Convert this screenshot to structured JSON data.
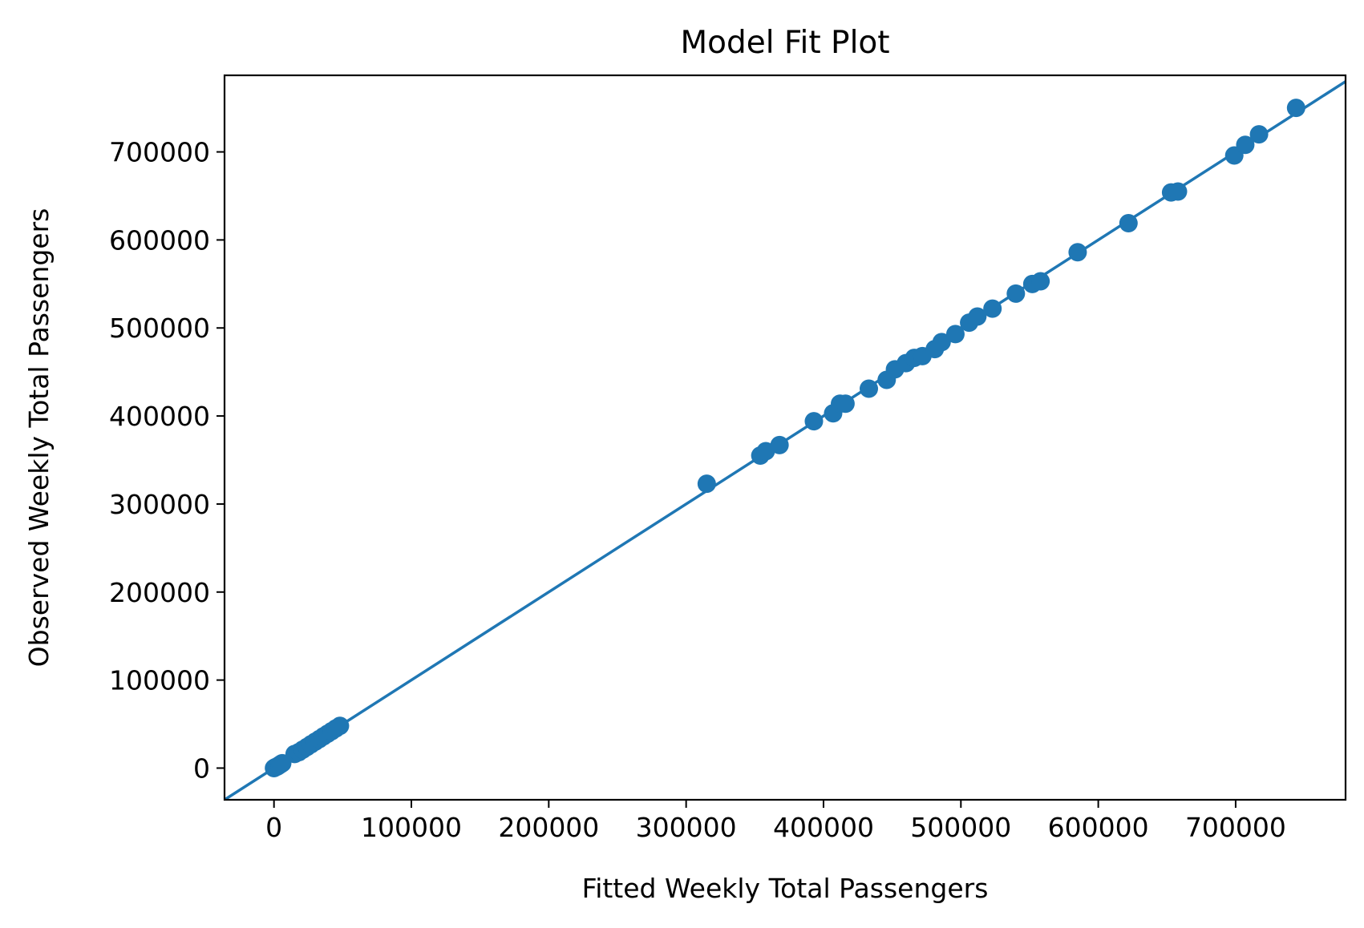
{
  "chart_data": {
    "type": "scatter",
    "title": "Model Fit Plot",
    "xlabel": "Fitted Weekly Total Passengers",
    "ylabel": "Observed Weekly Total Passengers",
    "xlim": [
      -36000,
      780000
    ],
    "ylim": [
      -36000,
      787000
    ],
    "xticks": [
      0,
      100000,
      200000,
      300000,
      400000,
      500000,
      600000,
      700000
    ],
    "xtick_labels": [
      "0",
      "100000",
      "200000",
      "300000",
      "400000",
      "500000",
      "600000",
      "700000"
    ],
    "yticks": [
      0,
      100000,
      200000,
      300000,
      400000,
      500000,
      600000,
      700000
    ],
    "ytick_labels": [
      "0",
      "100000",
      "200000",
      "300000",
      "400000",
      "500000",
      "600000",
      "700000"
    ],
    "grid": false,
    "legend": "none",
    "color": "#1f77b4",
    "reference_line": {
      "label": "",
      "slope": 1,
      "intercept": 0
    },
    "series": [
      {
        "points": [
          [
            0,
            0
          ],
          [
            1000,
            1000
          ],
          [
            2000,
            1500
          ],
          [
            3000,
            2500
          ],
          [
            4000,
            3500
          ],
          [
            5000,
            4500
          ],
          [
            6000,
            5500
          ],
          [
            15000,
            16000
          ],
          [
            18000,
            18000
          ],
          [
            21000,
            21000
          ],
          [
            24000,
            24000
          ],
          [
            27000,
            27000
          ],
          [
            30000,
            30000
          ],
          [
            33000,
            33000
          ],
          [
            36000,
            36000
          ],
          [
            39000,
            39000
          ],
          [
            42000,
            42000
          ],
          [
            45000,
            45000
          ],
          [
            48000,
            48000
          ],
          [
            315000,
            323000
          ],
          [
            354000,
            355000
          ],
          [
            358000,
            360000
          ],
          [
            368000,
            367000
          ],
          [
            393000,
            394000
          ],
          [
            407000,
            403000
          ],
          [
            412000,
            414000
          ],
          [
            416000,
            414000
          ],
          [
            433000,
            431000
          ],
          [
            446000,
            441000
          ],
          [
            452000,
            453000
          ],
          [
            460000,
            460000
          ],
          [
            466000,
            466000
          ],
          [
            472000,
            468000
          ],
          [
            481000,
            476000
          ],
          [
            486000,
            484000
          ],
          [
            496000,
            493000
          ],
          [
            506000,
            506000
          ],
          [
            512000,
            513000
          ],
          [
            523000,
            522000
          ],
          [
            540000,
            539000
          ],
          [
            552000,
            550000
          ],
          [
            558000,
            553000
          ],
          [
            585000,
            586000
          ],
          [
            622000,
            619000
          ],
          [
            653000,
            654000
          ],
          [
            658000,
            655000
          ],
          [
            699000,
            696000
          ],
          [
            707000,
            708000
          ],
          [
            717000,
            720000
          ],
          [
            744000,
            750000
          ]
        ]
      }
    ]
  }
}
